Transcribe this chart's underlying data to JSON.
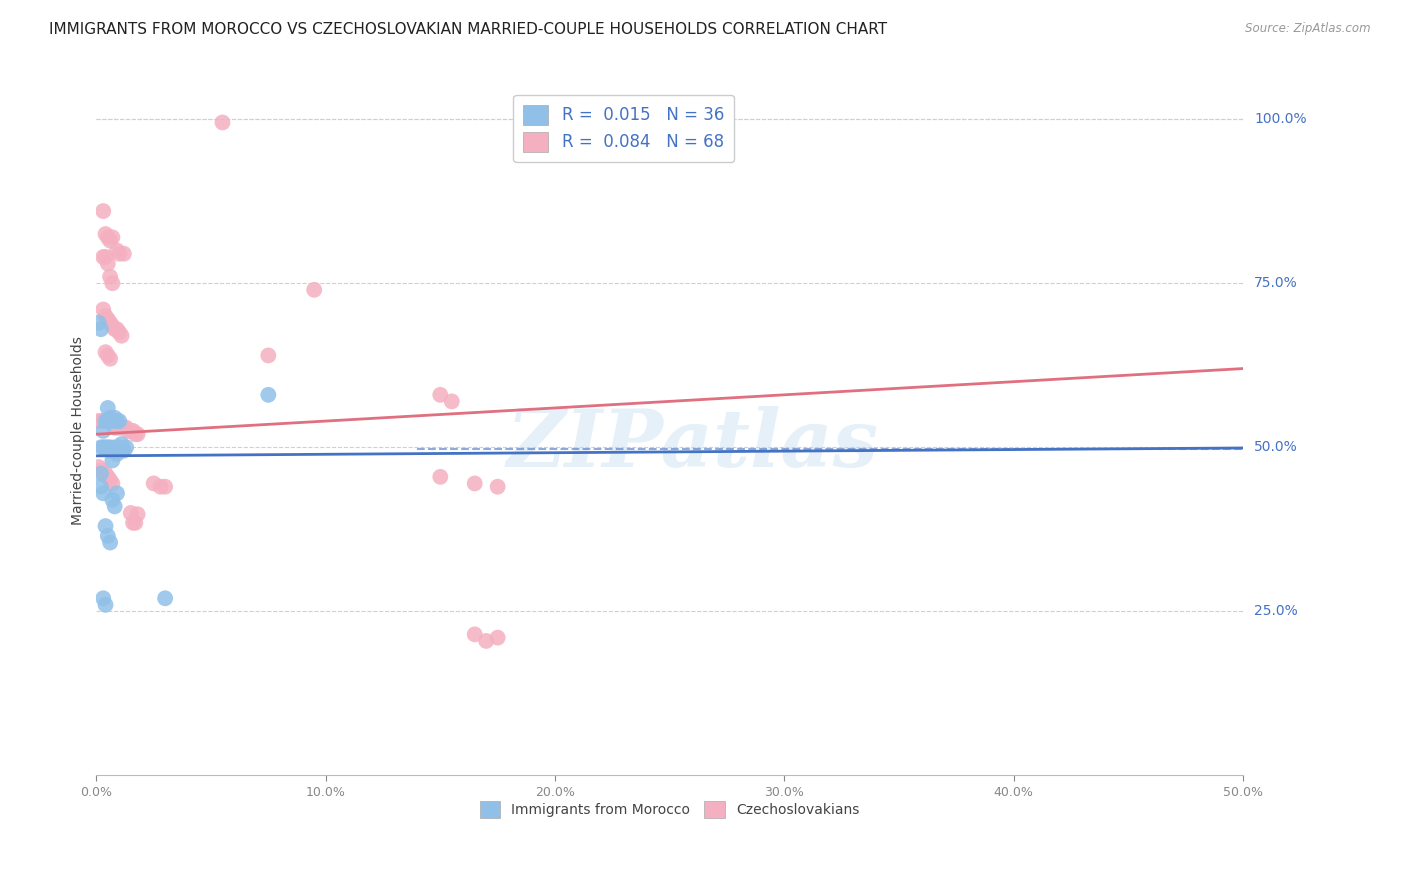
{
  "title": "IMMIGRANTS FROM MOROCCO VS CZECHOSLOVAKIAN MARRIED-COUPLE HOUSEHOLDS CORRELATION CHART",
  "source": "Source: ZipAtlas.com",
  "ylabel": "Married-couple Households",
  "xlim": [
    0.0,
    0.5
  ],
  "ylim": [
    0.0,
    1.05
  ],
  "xtick_labels": [
    "0.0%",
    "10.0%",
    "20.0%",
    "30.0%",
    "40.0%",
    "50.0%"
  ],
  "xtick_vals": [
    0.0,
    0.1,
    0.2,
    0.3,
    0.4,
    0.5
  ],
  "ytick_labels": [
    "25.0%",
    "50.0%",
    "75.0%",
    "100.0%"
  ],
  "ytick_vals": [
    0.25,
    0.5,
    0.75,
    1.0
  ],
  "legend_entries": [
    {
      "label": "R =  0.015   N = 36",
      "color": "#a8c8e8"
    },
    {
      "label": "R =  0.084   N = 68",
      "color": "#f4b0c0"
    }
  ],
  "legend_labels_bottom": [
    "Immigrants from Morocco",
    "Czechoslovakians"
  ],
  "blue_color": "#90c0e8",
  "pink_color": "#f4b0c0",
  "blue_line_color": "#4472c4",
  "pink_line_color": "#e07080",
  "r_n_color": "#4472c4",
  "blue_line": [
    [
      0.0,
      0.487
    ],
    [
      0.5,
      0.499
    ]
  ],
  "pink_line": [
    [
      0.0,
      0.52
    ],
    [
      0.5,
      0.62
    ]
  ],
  "dashed_line_y": 0.497,
  "blue_scatter": [
    [
      0.002,
      0.5
    ],
    [
      0.003,
      0.5
    ],
    [
      0.004,
      0.5
    ],
    [
      0.005,
      0.5
    ],
    [
      0.006,
      0.5
    ],
    [
      0.007,
      0.48
    ],
    [
      0.008,
      0.5
    ],
    [
      0.009,
      0.49
    ],
    [
      0.01,
      0.5
    ],
    [
      0.011,
      0.505
    ],
    [
      0.012,
      0.495
    ],
    [
      0.013,
      0.5
    ],
    [
      0.003,
      0.525
    ],
    [
      0.004,
      0.54
    ],
    [
      0.005,
      0.54
    ],
    [
      0.006,
      0.545
    ],
    [
      0.007,
      0.54
    ],
    [
      0.008,
      0.545
    ],
    [
      0.009,
      0.54
    ],
    [
      0.01,
      0.54
    ],
    [
      0.002,
      0.44
    ],
    [
      0.003,
      0.43
    ],
    [
      0.004,
      0.38
    ],
    [
      0.005,
      0.365
    ],
    [
      0.006,
      0.355
    ],
    [
      0.007,
      0.42
    ],
    [
      0.008,
      0.41
    ],
    [
      0.009,
      0.43
    ],
    [
      0.003,
      0.27
    ],
    [
      0.004,
      0.26
    ],
    [
      0.002,
      0.68
    ],
    [
      0.005,
      0.56
    ],
    [
      0.001,
      0.69
    ],
    [
      0.002,
      0.46
    ],
    [
      0.075,
      0.58
    ],
    [
      0.03,
      0.27
    ]
  ],
  "pink_scatter": [
    [
      0.003,
      0.86
    ],
    [
      0.004,
      0.825
    ],
    [
      0.005,
      0.82
    ],
    [
      0.006,
      0.815
    ],
    [
      0.007,
      0.82
    ],
    [
      0.009,
      0.8
    ],
    [
      0.012,
      0.795
    ],
    [
      0.01,
      0.795
    ],
    [
      0.003,
      0.79
    ],
    [
      0.004,
      0.79
    ],
    [
      0.005,
      0.78
    ],
    [
      0.006,
      0.76
    ],
    [
      0.007,
      0.75
    ],
    [
      0.003,
      0.71
    ],
    [
      0.004,
      0.7
    ],
    [
      0.005,
      0.695
    ],
    [
      0.006,
      0.69
    ],
    [
      0.007,
      0.685
    ],
    [
      0.008,
      0.68
    ],
    [
      0.009,
      0.68
    ],
    [
      0.01,
      0.675
    ],
    [
      0.011,
      0.67
    ],
    [
      0.004,
      0.645
    ],
    [
      0.005,
      0.64
    ],
    [
      0.006,
      0.635
    ],
    [
      0.001,
      0.54
    ],
    [
      0.002,
      0.54
    ],
    [
      0.003,
      0.54
    ],
    [
      0.004,
      0.54
    ],
    [
      0.005,
      0.54
    ],
    [
      0.006,
      0.54
    ],
    [
      0.007,
      0.535
    ],
    [
      0.008,
      0.53
    ],
    [
      0.009,
      0.53
    ],
    [
      0.01,
      0.53
    ],
    [
      0.011,
      0.53
    ],
    [
      0.012,
      0.53
    ],
    [
      0.013,
      0.53
    ],
    [
      0.014,
      0.525
    ],
    [
      0.015,
      0.525
    ],
    [
      0.016,
      0.525
    ],
    [
      0.017,
      0.52
    ],
    [
      0.018,
      0.52
    ],
    [
      0.001,
      0.47
    ],
    [
      0.002,
      0.465
    ],
    [
      0.003,
      0.46
    ],
    [
      0.004,
      0.46
    ],
    [
      0.005,
      0.455
    ],
    [
      0.006,
      0.45
    ],
    [
      0.007,
      0.445
    ],
    [
      0.015,
      0.4
    ],
    [
      0.016,
      0.385
    ],
    [
      0.017,
      0.385
    ],
    [
      0.025,
      0.445
    ],
    [
      0.028,
      0.44
    ],
    [
      0.03,
      0.44
    ],
    [
      0.075,
      0.64
    ],
    [
      0.095,
      0.74
    ],
    [
      0.15,
      0.58
    ],
    [
      0.155,
      0.57
    ],
    [
      0.165,
      0.215
    ],
    [
      0.17,
      0.205
    ],
    [
      0.175,
      0.21
    ],
    [
      0.055,
      0.995
    ],
    [
      0.15,
      0.455
    ],
    [
      0.165,
      0.445
    ],
    [
      0.175,
      0.44
    ],
    [
      0.018,
      0.398
    ]
  ],
  "watermark": "ZIPatlas",
  "background_color": "#ffffff",
  "grid_color": "#d0d0d0",
  "title_fontsize": 11,
  "axis_label_fontsize": 10,
  "tick_fontsize": 9
}
